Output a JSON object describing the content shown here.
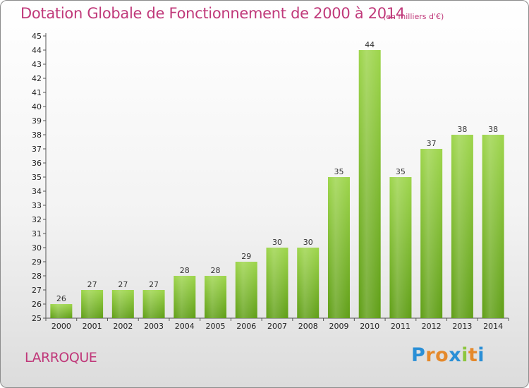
{
  "header": {
    "title": "Dotation Globale de Fonctionnement de 2000 à 2014",
    "subtitle": "(en milliers d'€)"
  },
  "footer": {
    "commune": "LARROQUE",
    "logo_letters": [
      "P",
      "r",
      "o",
      "x",
      "i",
      "t",
      "i"
    ],
    "logo_colors": [
      "#2a8fd6",
      "#e5892b",
      "#e5892b",
      "#2a8fd6",
      "#8dc63f",
      "#e5892b",
      "#2a8fd6"
    ]
  },
  "chart_data": {
    "type": "bar",
    "title": "Dotation Globale de Fonctionnement de 2000 à 2014",
    "subtitle": "(en milliers d'€)",
    "categories": [
      "2000",
      "2001",
      "2002",
      "2003",
      "2004",
      "2005",
      "2006",
      "2007",
      "2008",
      "2009",
      "2010",
      "2011",
      "2012",
      "2013",
      "2014"
    ],
    "values": [
      26,
      27,
      27,
      27,
      28,
      28,
      29,
      30,
      30,
      35,
      44,
      35,
      37,
      38,
      38
    ],
    "ylim": [
      25,
      45
    ],
    "yticks": [
      25,
      26,
      27,
      28,
      29,
      30,
      31,
      32,
      33,
      34,
      35,
      36,
      37,
      38,
      39,
      40,
      41,
      42,
      43,
      44,
      45
    ],
    "grid": false,
    "bar_color": "#7ebf2c",
    "data_labels": true
  }
}
